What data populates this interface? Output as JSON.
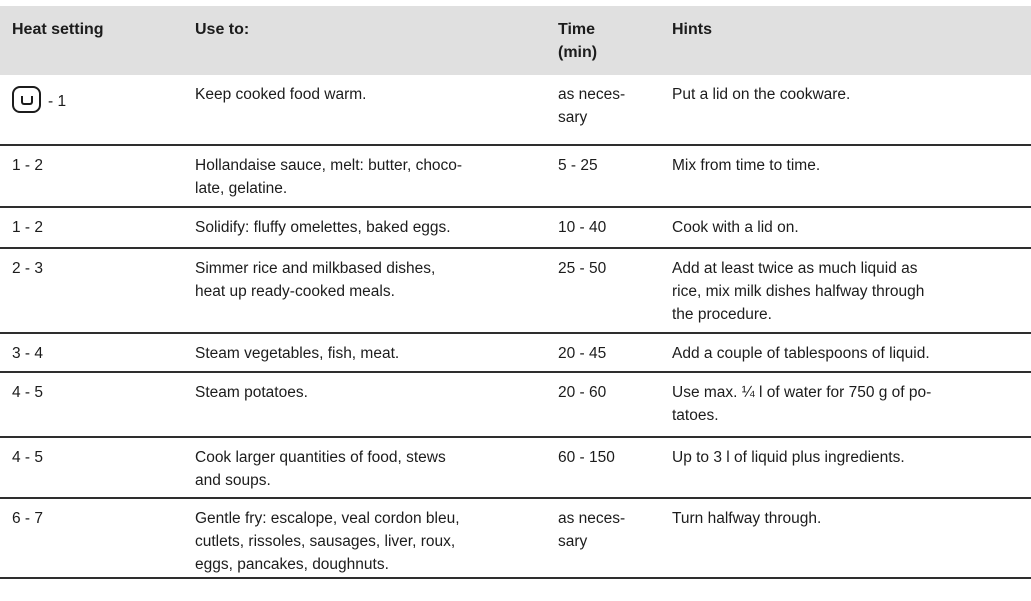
{
  "colors": {
    "header_bg": "#e0e0e0",
    "row_border": "#2e2e2e",
    "text": "#1c1c1c",
    "page_bg": "#ffffff"
  },
  "icons": {
    "keep_warm": "keep-warm-icon"
  },
  "table": {
    "header": [
      "Heat setting",
      "Use to:",
      "Time\n(min)",
      "Hints"
    ],
    "rows": [
      {
        "heat": "- 1",
        "use": "Keep cooked food warm.",
        "time": "as neces-\nsary",
        "hints": "Put a lid on the cookware."
      },
      {
        "heat": "1 - 2",
        "use": "Hollandaise sauce, melt: butter, choco-\nlate, gelatine.",
        "time": "5 - 25",
        "hints": "Mix from time to time."
      },
      {
        "heat": "1 - 2",
        "use": "Solidify: fluffy omelettes, baked eggs.",
        "time": "10 - 40",
        "hints": "Cook with a lid on."
      },
      {
        "heat": "2 - 3",
        "use": "Simmer rice and milkbased dishes,\nheat up ready-cooked meals.",
        "time": "25 - 50",
        "hints": "Add at least twice as much liquid as\nrice, mix milk dishes halfway through\nthe procedure."
      },
      {
        "heat": "3 - 4",
        "use": "Steam vegetables, fish, meat.",
        "time": "20 - 45",
        "hints": "Add a couple of tablespoons of liquid."
      },
      {
        "heat": "4 - 5",
        "use": "Steam potatoes.",
        "time": "20 - 60",
        "hints": "Use max. ¼ l of water for 750 g of po-\ntatoes."
      },
      {
        "heat": "4 - 5",
        "use": "Cook larger quantities of food, stews\nand soups.",
        "time": "60 - 150",
        "hints": "Up to 3 l of liquid plus ingredients."
      },
      {
        "heat": "6 - 7",
        "use": "Gentle fry: escalope, veal cordon bleu,\ncutlets, rissoles, sausages, liver, roux,\neggs, pancakes, doughnuts.",
        "time": "as neces-\nsary",
        "hints": "Turn halfway through."
      }
    ]
  }
}
